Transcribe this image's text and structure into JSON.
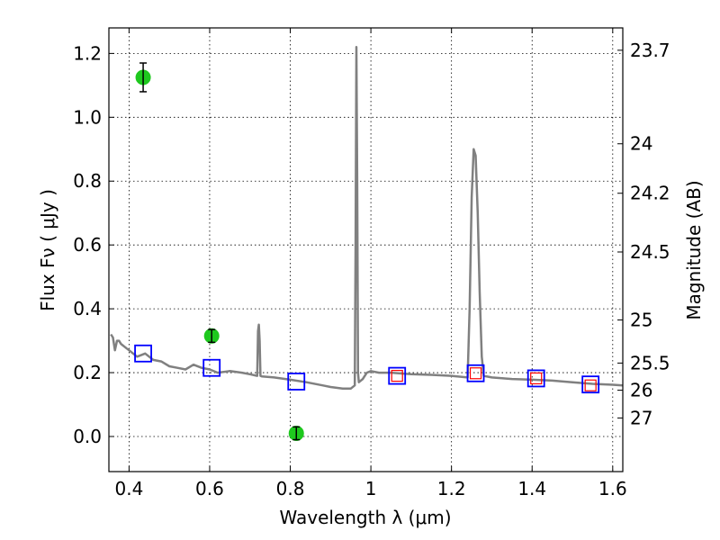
{
  "chart_data": {
    "type": "line",
    "xlabel": "Wavelength  λ (μm)",
    "ylabel": "Flux  Fν  ( μJy )",
    "y2label": "Magnitude (AB)",
    "xlim": [
      0.35,
      1.625
    ],
    "ylim": [
      -0.11,
      1.28
    ],
    "grid": true,
    "x_ticks": [
      0.4,
      0.6,
      0.8,
      1.0,
      1.2,
      1.4,
      1.6
    ],
    "x_tick_labels": [
      "0.4",
      "0.6",
      "0.8",
      "1",
      "1.2",
      "1.4",
      "1.6"
    ],
    "y_ticks": [
      0.0,
      0.2,
      0.4,
      0.6,
      0.8,
      1.0,
      1.2
    ],
    "y_tick_labels": [
      "0.0",
      "0.2",
      "0.4",
      "0.6",
      "0.8",
      "1.0",
      "1.2"
    ],
    "y2_ticks": [
      {
        "label": "23.7",
        "flux": 1.21
      },
      {
        "label": "24",
        "flux": 0.917
      },
      {
        "label": "24.2",
        "flux": 0.762
      },
      {
        "label": "24.5",
        "flux": 0.578
      },
      {
        "label": "25",
        "flux": 0.365
      },
      {
        "label": "25.5",
        "flux": 0.23
      },
      {
        "label": "26",
        "flux": 0.145
      },
      {
        "label": "27",
        "flux": 0.058
      }
    ],
    "series": [
      {
        "kind": "spectrum",
        "color": "#808080",
        "x": [
          0.355,
          0.36,
          0.365,
          0.37,
          0.375,
          0.38,
          0.39,
          0.4,
          0.42,
          0.44,
          0.46,
          0.48,
          0.5,
          0.52,
          0.54,
          0.56,
          0.58,
          0.6,
          0.62,
          0.65,
          0.68,
          0.7,
          0.718,
          0.72,
          0.722,
          0.724,
          0.726,
          0.73,
          0.76,
          0.8,
          0.84,
          0.88,
          0.9,
          0.93,
          0.95,
          0.96,
          0.962,
          0.964,
          0.966,
          0.968,
          0.97,
          0.98,
          0.99,
          1.0,
          1.02,
          1.05,
          1.1,
          1.15,
          1.2,
          1.24,
          1.245,
          1.25,
          1.255,
          1.26,
          1.265,
          1.27,
          1.275,
          1.28,
          1.3,
          1.35,
          1.4,
          1.45,
          1.5,
          1.55,
          1.6,
          1.625
        ],
        "y": [
          0.32,
          0.31,
          0.27,
          0.3,
          0.3,
          0.29,
          0.28,
          0.27,
          0.25,
          0.26,
          0.24,
          0.235,
          0.22,
          0.215,
          0.21,
          0.225,
          0.215,
          0.21,
          0.2,
          0.205,
          0.2,
          0.195,
          0.19,
          0.33,
          0.35,
          0.3,
          0.19,
          0.188,
          0.185,
          0.178,
          0.17,
          0.16,
          0.155,
          0.15,
          0.15,
          0.16,
          0.6,
          1.22,
          0.8,
          0.2,
          0.17,
          0.18,
          0.2,
          0.205,
          0.2,
          0.2,
          0.195,
          0.193,
          0.19,
          0.185,
          0.4,
          0.75,
          0.9,
          0.88,
          0.7,
          0.45,
          0.25,
          0.19,
          0.185,
          0.18,
          0.178,
          0.175,
          0.17,
          0.165,
          0.162,
          0.16
        ]
      },
      {
        "kind": "photometry",
        "marker": "circle",
        "color": "#1ec81e",
        "x": [
          0.435,
          0.605,
          0.815
        ],
        "y": [
          1.125,
          0.315,
          0.01
        ],
        "yerr": [
          0.045,
          0.02,
          0.02
        ]
      },
      {
        "kind": "model",
        "marker": "square",
        "color": "#0000ff",
        "x": [
          0.435,
          0.605,
          0.815,
          1.065,
          1.26,
          1.41,
          1.545
        ],
        "y": [
          0.26,
          0.215,
          0.172,
          0.19,
          0.198,
          0.182,
          0.163
        ]
      },
      {
        "kind": "model",
        "marker": "square",
        "color": "#ff0000",
        "x": [
          1.065,
          1.26,
          1.41,
          1.545
        ],
        "y": [
          0.19,
          0.198,
          0.182,
          0.16
        ]
      }
    ]
  }
}
